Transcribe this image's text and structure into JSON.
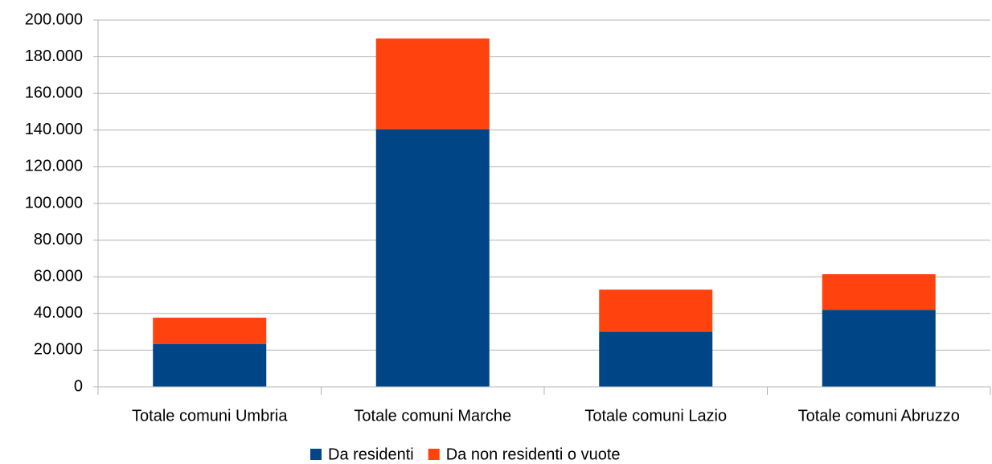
{
  "chart_data": {
    "type": "stacked_bar",
    "categories": [
      "Totale comuni Umbria",
      "Totale comuni Marche",
      "Totale comuni Lazio",
      "Totale comuni Abruzzo"
    ],
    "series": [
      {
        "name": "Da residenti",
        "color": "#004586",
        "values": [
          23400,
          140500,
          30000,
          42000
        ]
      },
      {
        "name": "Da non residenti o vuote",
        "color": "#ff420e",
        "values": [
          14300,
          49500,
          23000,
          19400
        ]
      }
    ],
    "ylim": [
      0,
      200000
    ],
    "yticks": [
      0,
      {
        "value": 20000,
        "label": "20.000"
      },
      {
        "value": 40000,
        "label": "40.000"
      },
      {
        "value": 60000,
        "label": "60.000"
      },
      {
        "value": 80000,
        "label": "80.000"
      },
      {
        "value": 100000,
        "label": "100.000"
      },
      {
        "value": 120000,
        "label": "120.000"
      },
      {
        "value": 140000,
        "label": "140.000"
      },
      {
        "value": 160000,
        "label": "160.000"
      },
      {
        "value": 180000,
        "label": "180.000"
      },
      {
        "value": 200000,
        "label": "200.000"
      }
    ],
    "grid": true,
    "legend": "bottom"
  }
}
